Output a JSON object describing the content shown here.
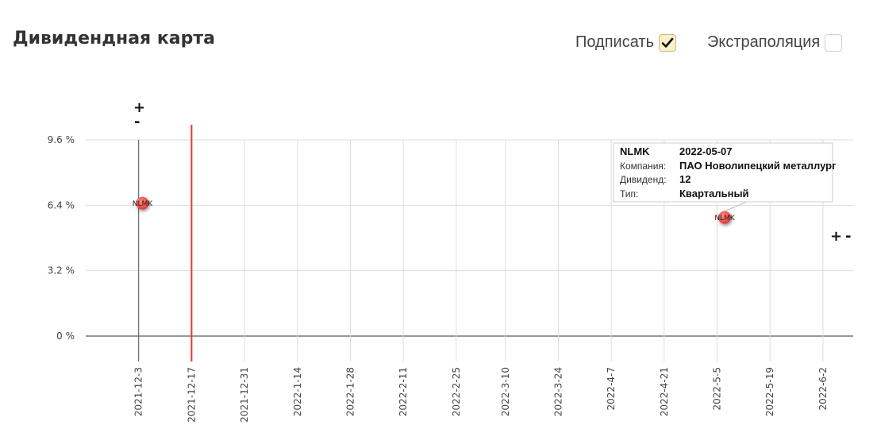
{
  "title": "Дивидендная карта",
  "controls": {
    "label_toggle": {
      "label": "Подписать",
      "checked": true
    },
    "extrapolation_toggle": {
      "label": "Экстраполяция",
      "checked": false
    }
  },
  "zoom": {
    "plus": "+",
    "minus": "-"
  },
  "tooltip": {
    "ticker": "NLMK",
    "date": "2022-05-07",
    "company_label": "Компания:",
    "company_value": "ПАО Новолипецкий металлург",
    "dividend_label": "Дивиденд:",
    "dividend_value": "12",
    "type_label": "Тип:",
    "type_value": "Квартальный"
  },
  "chart_data": {
    "type": "scatter",
    "title": "",
    "xlabel": "",
    "ylabel": "",
    "x_tick_labels": [
      "2021-12-3",
      "2021-12-17",
      "2021-12-31",
      "2022-1-14",
      "2022-1-28",
      "2022-2-11",
      "2022-2-25",
      "2022-3-10",
      "2022-3-24",
      "2022-4-7",
      "2022-4-21",
      "2022-5-5",
      "2022-5-19",
      "2022-6-2"
    ],
    "y_tick_labels": [
      "0 %",
      "3.2 %",
      "6.4 %",
      "9.6 %"
    ],
    "ylim": [
      0,
      9.6
    ],
    "xlim": [
      "2021-11-19",
      "2022-06-10"
    ],
    "grid": true,
    "today_marker": "2021-12-17",
    "series": [
      {
        "color": "#e53935",
        "points": [
          {
            "x": "2021-12-04",
            "y": 6.5,
            "label": "NLMK"
          },
          {
            "x": "2022-05-07",
            "y": 5.8,
            "label": "NLMK"
          }
        ]
      }
    ]
  }
}
